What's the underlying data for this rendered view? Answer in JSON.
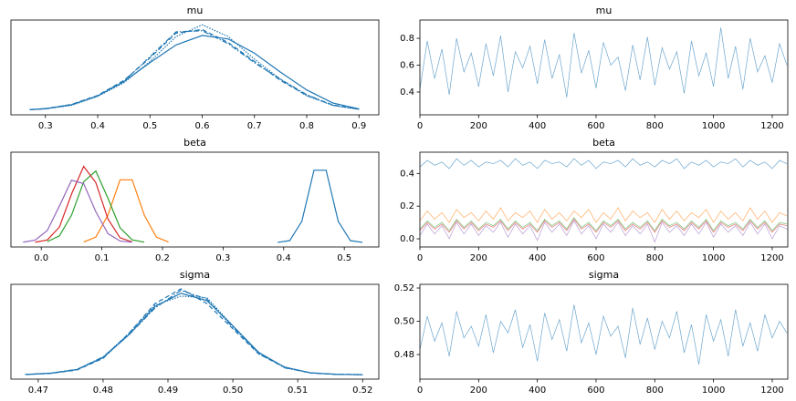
{
  "chart_data": [
    {
      "type": "line",
      "title": "mu",
      "x": [
        0.27,
        0.3,
        0.35,
        0.4,
        0.45,
        0.5,
        0.55,
        0.6,
        0.65,
        0.7,
        0.75,
        0.8,
        0.85,
        0.9
      ],
      "series": [
        {
          "color": "#1f77b4",
          "dash": "solid",
          "values": [
            0.02,
            0.06,
            0.22,
            0.6,
            1.2,
            2.0,
            2.75,
            3.15,
            3.0,
            2.4,
            1.6,
            0.85,
            0.3,
            0.05
          ]
        },
        {
          "color": "#1f77b4",
          "dash": "dashed",
          "values": [
            0.02,
            0.06,
            0.24,
            0.62,
            1.25,
            2.2,
            3.25,
            3.4,
            2.85,
            2.05,
            1.25,
            0.62,
            0.22,
            0.04
          ]
        },
        {
          "color": "#1f77b4",
          "dash": "dashdot",
          "values": [
            0.02,
            0.06,
            0.23,
            0.6,
            1.22,
            2.25,
            3.3,
            3.35,
            2.8,
            2.0,
            1.3,
            0.65,
            0.2,
            0.04
          ]
        },
        {
          "color": "#1f77b4",
          "dash": "dotted",
          "values": [
            0.02,
            0.05,
            0.2,
            0.58,
            1.15,
            2.05,
            3.1,
            3.6,
            3.1,
            2.15,
            1.3,
            0.6,
            0.2,
            0.03
          ]
        }
      ],
      "xlim": [
        0.234,
        0.938
      ],
      "xticks": [
        0.3,
        0.4,
        0.5,
        0.6,
        0.7,
        0.8,
        0.9
      ],
      "ylim": [
        -0.2,
        3.8
      ]
    },
    {
      "type": "line",
      "title": "mu",
      "x": [
        0,
        25,
        50,
        75,
        100,
        125,
        150,
        175,
        200,
        225,
        250,
        275,
        300,
        325,
        350,
        375,
        400,
        425,
        450,
        475,
        500,
        525,
        550,
        575,
        600,
        625,
        650,
        675,
        700,
        725,
        750,
        775,
        800,
        825,
        850,
        875,
        900,
        925,
        950,
        975,
        1000,
        1025,
        1050,
        1075,
        1100,
        1125,
        1150,
        1175,
        1200,
        1225,
        1250
      ],
      "series": [
        {
          "color": "#1f77b4",
          "values": [
            0.42,
            0.78,
            0.5,
            0.72,
            0.38,
            0.8,
            0.55,
            0.69,
            0.44,
            0.76,
            0.52,
            0.82,
            0.4,
            0.7,
            0.58,
            0.74,
            0.46,
            0.79,
            0.5,
            0.68,
            0.36,
            0.84,
            0.54,
            0.71,
            0.43,
            0.77,
            0.6,
            0.66,
            0.41,
            0.75,
            0.49,
            0.81,
            0.45,
            0.73,
            0.57,
            0.7,
            0.39,
            0.78,
            0.52,
            0.69,
            0.44,
            0.88,
            0.5,
            0.74,
            0.42,
            0.8,
            0.55,
            0.67,
            0.47,
            0.76,
            0.6
          ]
        }
      ],
      "xlim": [
        0,
        1253
      ],
      "xticks": [
        0,
        200,
        400,
        600,
        800,
        1000,
        1200
      ],
      "ylim": [
        0.23,
        0.936
      ],
      "yticks": [
        0.4,
        0.6,
        0.8
      ]
    },
    {
      "type": "line",
      "title": "beta",
      "x": [
        -0.03,
        -0.01,
        0.01,
        0.03,
        0.05,
        0.07,
        0.09,
        0.11,
        0.13,
        0.15,
        0.17,
        0.19,
        0.21,
        0.23,
        0.25,
        0.27,
        0.29,
        0.31,
        0.33,
        0.35,
        0.37,
        0.39,
        0.41,
        0.43,
        0.45,
        0.47,
        0.49,
        0.51,
        0.53
      ],
      "series": [
        {
          "color": "#1f77b4",
          "dash": "solid",
          "values": [
            null,
            null,
            null,
            null,
            null,
            null,
            null,
            null,
            null,
            null,
            null,
            null,
            null,
            null,
            null,
            null,
            null,
            null,
            null,
            null,
            null,
            0.01,
            0.46,
            5.5,
            18.8,
            18.8,
            5.5,
            0.46,
            0.01
          ]
        },
        {
          "color": "#ff7f0e",
          "dash": "solid",
          "values": [
            null,
            null,
            null,
            null,
            null,
            0.1,
            1.37,
            7.1,
            16.3,
            16.3,
            7.1,
            1.37,
            0.1,
            null,
            null,
            null,
            null,
            null,
            null,
            null,
            null,
            null,
            null,
            null,
            null,
            null,
            null,
            null,
            null
          ]
        },
        {
          "color": "#2ca02c",
          "dash": "solid",
          "values": [
            null,
            null,
            0.2,
            1.7,
            7.1,
            15.8,
            18.6,
            11.5,
            3.8,
            0.65,
            0.06,
            null,
            null,
            null,
            null,
            null,
            null,
            null,
            null,
            null,
            null,
            null,
            null,
            null,
            null,
            null,
            null,
            null,
            null
          ]
        },
        {
          "color": "#d62728",
          "dash": "solid",
          "values": [
            null,
            0.05,
            0.63,
            4.0,
            12.6,
            19.8,
            15.6,
            6.1,
            1.2,
            0.12,
            null,
            null,
            null,
            null,
            null,
            null,
            null,
            null,
            null,
            null,
            null,
            null,
            null,
            null,
            null,
            null,
            null,
            null,
            null
          ]
        },
        {
          "color": "#9467bd",
          "dash": "solid",
          "values": [
            0.05,
            0.6,
            3.1,
            9.5,
            16.2,
            15.3,
            8.0,
            2.3,
            0.35,
            0.03,
            null,
            null,
            null,
            null,
            null,
            null,
            null,
            null,
            null,
            null,
            null,
            null,
            null,
            null,
            null,
            null,
            null,
            null,
            null
          ]
        }
      ],
      "xlim": [
        -0.05,
        0.557
      ],
      "xticks": [
        {
          "value": 0,
          "label": "0.0"
        },
        0.1,
        0.2,
        0.3,
        0.4,
        0.5
      ],
      "ylim": [
        -1.2,
        23.5
      ]
    },
    {
      "type": "line",
      "title": "beta",
      "x": [
        0,
        25,
        50,
        75,
        100,
        125,
        150,
        175,
        200,
        225,
        250,
        275,
        300,
        325,
        350,
        375,
        400,
        425,
        450,
        475,
        500,
        525,
        550,
        575,
        600,
        625,
        650,
        675,
        700,
        725,
        750,
        775,
        800,
        825,
        850,
        875,
        900,
        925,
        950,
        975,
        1000,
        1025,
        1050,
        1075,
        1100,
        1125,
        1150,
        1175,
        1200,
        1225,
        1250
      ],
      "series": [
        {
          "color": "#1f77b4",
          "values": [
            0.44,
            0.48,
            0.45,
            0.47,
            0.43,
            0.49,
            0.45,
            0.48,
            0.44,
            0.47,
            0.46,
            0.48,
            0.44,
            0.49,
            0.45,
            0.47,
            0.43,
            0.48,
            0.46,
            0.47,
            0.44,
            0.49,
            0.45,
            0.48,
            0.43,
            0.47,
            0.46,
            0.48,
            0.44,
            0.49,
            0.45,
            0.47,
            0.44,
            0.48,
            0.46,
            0.49,
            0.43,
            0.47,
            0.45,
            0.48,
            0.44,
            0.47,
            0.46,
            0.49,
            0.44,
            0.48,
            0.45,
            0.47,
            0.43,
            0.48,
            0.46
          ]
        },
        {
          "color": "#ff7f0e",
          "values": [
            0.11,
            0.17,
            0.12,
            0.16,
            0.1,
            0.18,
            0.13,
            0.16,
            0.11,
            0.17,
            0.12,
            0.19,
            0.11,
            0.16,
            0.13,
            0.17,
            0.1,
            0.18,
            0.12,
            0.16,
            0.11,
            0.17,
            0.13,
            0.18,
            0.1,
            0.16,
            0.12,
            0.19,
            0.11,
            0.17,
            0.13,
            0.16,
            0.1,
            0.18,
            0.12,
            0.17,
            0.11,
            0.16,
            0.13,
            0.18,
            0.1,
            0.17,
            0.12,
            0.16,
            0.11,
            0.19,
            0.12,
            0.17,
            0.1,
            0.16,
            0.14
          ]
        },
        {
          "color": "#2ca02c",
          "values": [
            0.06,
            0.11,
            0.07,
            0.1,
            0.05,
            0.12,
            0.07,
            0.11,
            0.06,
            0.1,
            0.08,
            0.12,
            0.06,
            0.11,
            0.07,
            0.1,
            0.05,
            0.12,
            0.08,
            0.11,
            0.06,
            0.13,
            0.07,
            0.1,
            0.05,
            0.11,
            0.08,
            0.12,
            0.06,
            0.1,
            0.07,
            0.11,
            0.05,
            0.12,
            0.08,
            0.1,
            0.06,
            0.11,
            0.07,
            0.12,
            0.05,
            0.11,
            0.08,
            0.1,
            0.06,
            0.12,
            0.07,
            0.11,
            0.05,
            0.1,
            0.09
          ]
        },
        {
          "color": "#d62728",
          "values": [
            0.05,
            0.1,
            0.06,
            0.09,
            0.04,
            0.11,
            0.06,
            0.1,
            0.05,
            0.09,
            0.07,
            0.11,
            0.05,
            0.1,
            0.06,
            0.09,
            0.04,
            0.11,
            0.07,
            0.1,
            0.05,
            0.12,
            0.06,
            0.09,
            0.04,
            0.1,
            0.07,
            0.11,
            0.05,
            0.09,
            0.06,
            0.1,
            0.04,
            0.11,
            0.07,
            0.09,
            0.05,
            0.1,
            0.06,
            0.11,
            0.04,
            0.1,
            0.07,
            0.09,
            0.05,
            0.11,
            0.06,
            0.1,
            0.04,
            0.09,
            0.08
          ]
        },
        {
          "color": "#9467bd",
          "values": [
            0.02,
            0.09,
            0.03,
            0.08,
            0.0,
            0.1,
            0.03,
            0.09,
            0.02,
            0.08,
            0.04,
            0.1,
            0.01,
            0.09,
            0.03,
            0.08,
            -0.01,
            0.1,
            0.04,
            0.09,
            0.02,
            0.11,
            0.03,
            0.08,
            0.0,
            0.09,
            0.04,
            0.1,
            0.02,
            0.08,
            0.03,
            0.09,
            -0.02,
            0.1,
            0.04,
            0.08,
            0.02,
            0.09,
            0.03,
            0.1,
            0.01,
            0.09,
            0.04,
            0.08,
            0.02,
            0.1,
            0.03,
            0.09,
            0.0,
            0.08,
            0.06
          ]
        }
      ],
      "xlim": [
        0,
        1253
      ],
      "xticks": [
        0,
        200,
        400,
        600,
        800,
        1000,
        1200
      ],
      "ylim": [
        -0.05,
        0.53
      ],
      "yticks": [
        {
          "value": 0,
          "label": "0.0"
        },
        0.2,
        0.4
      ]
    },
    {
      "type": "line",
      "title": "sigma",
      "x": [
        0.468,
        0.472,
        0.476,
        0.48,
        0.484,
        0.488,
        0.492,
        0.496,
        0.5,
        0.504,
        0.508,
        0.512,
        0.516,
        0.52
      ],
      "series": [
        {
          "color": "#1f77b4",
          "dash": "solid",
          "values": [
            0.12,
            1.0,
            3.5,
            11.5,
            27,
            46,
            55,
            50,
            33,
            15,
            5,
            1.2,
            0.2,
            0.02
          ]
        },
        {
          "color": "#1f77b4",
          "dash": "dashed",
          "values": [
            0.1,
            0.9,
            3.2,
            11,
            28,
            48,
            58,
            48,
            31,
            14,
            4.8,
            1.1,
            0.3,
            0.02
          ]
        },
        {
          "color": "#1f77b4",
          "dash": "dashdot",
          "values": [
            0.1,
            1.1,
            3.6,
            12,
            27,
            45,
            57,
            51,
            32,
            15,
            4.6,
            1.3,
            0.2,
            0.03
          ]
        },
        {
          "color": "#1f77b4",
          "dash": "dotted",
          "values": [
            0.15,
            1.0,
            3.4,
            11.8,
            28,
            47,
            53,
            52,
            33,
            14,
            5.2,
            1.2,
            0.2,
            0.02
          ]
        }
      ],
      "xlim": [
        0.4658,
        0.5225
      ],
      "xticks": [
        0.47,
        0.48,
        0.49,
        {
          "value": 0.5,
          "label": "0.50"
        },
        0.51,
        0.52
      ],
      "ylim": [
        -3,
        61
      ]
    },
    {
      "type": "line",
      "title": "sigma",
      "x": [
        0,
        25,
        50,
        75,
        100,
        125,
        150,
        175,
        200,
        225,
        250,
        275,
        300,
        325,
        350,
        375,
        400,
        425,
        450,
        475,
        500,
        525,
        550,
        575,
        600,
        625,
        650,
        675,
        700,
        725,
        750,
        775,
        800,
        825,
        850,
        875,
        900,
        925,
        950,
        975,
        1000,
        1025,
        1050,
        1075,
        1100,
        1125,
        1150,
        1175,
        1200,
        1225,
        1250
      ],
      "series": [
        {
          "color": "#1f77b4",
          "values": [
            0.483,
            0.503,
            0.488,
            0.499,
            0.479,
            0.506,
            0.49,
            0.497,
            0.485,
            0.504,
            0.481,
            0.5,
            0.493,
            0.507,
            0.484,
            0.498,
            0.476,
            0.505,
            0.489,
            0.501,
            0.482,
            0.51,
            0.487,
            0.499,
            0.48,
            0.503,
            0.491,
            0.497,
            0.478,
            0.508,
            0.486,
            0.502,
            0.483,
            0.5,
            0.49,
            0.506,
            0.481,
            0.498,
            0.474,
            0.504,
            0.488,
            0.501,
            0.479,
            0.507,
            0.485,
            0.499,
            0.482,
            0.504,
            0.49,
            0.5,
            0.493
          ]
        }
      ],
      "xlim": [
        0,
        1253
      ],
      "xticks": [
        0,
        200,
        400,
        600,
        800,
        1000,
        1200
      ],
      "ylim": [
        0.4652,
        0.5222
      ],
      "yticks": [
        0.48,
        {
          "value": 0.5,
          "label": "0.50"
        },
        0.52
      ]
    }
  ]
}
